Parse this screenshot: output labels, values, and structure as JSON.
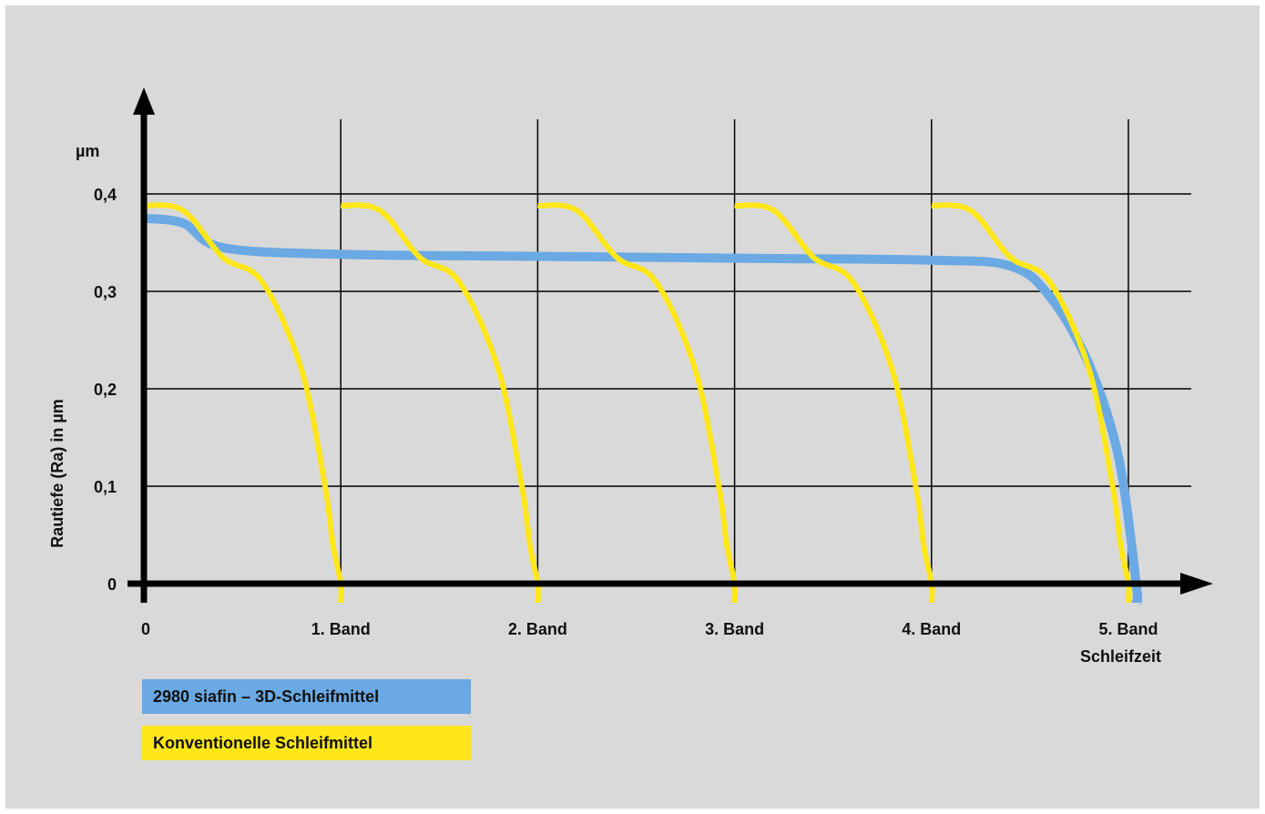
{
  "chart_data": {
    "type": "line",
    "ylabel": "Rautiefe (Ra) in µm",
    "yunit": "µm",
    "xlabel": "Schleifzeit",
    "ylim": [
      0,
      0.4
    ],
    "yticks": [
      "0",
      "0,1",
      "0,2",
      "0,3",
      "0,4"
    ],
    "ytick_values": [
      0,
      0.1,
      0.2,
      0.3,
      0.4
    ],
    "xlim": [
      0,
      5
    ],
    "xticks": [
      "0",
      "1. Band",
      "2. Band",
      "3. Band",
      "4. Band",
      "5. Band"
    ],
    "xtick_values": [
      0,
      1,
      2,
      3,
      4,
      5
    ],
    "grid": true,
    "series": [
      {
        "name": "2980 siafin – 3D-Schleifmittel",
        "color": "#6aa9e3",
        "x": [
          0,
          0.2,
          0.4,
          1,
          2,
          3,
          4,
          4.4,
          4.6,
          4.8,
          4.95,
          5.04
        ],
        "y": [
          0.375,
          0.37,
          0.345,
          0.338,
          0.336,
          0.334,
          0.332,
          0.326,
          0.295,
          0.225,
          0.13,
          0
        ]
      },
      {
        "name": "Konventionelle Schleifmittel",
        "color": "#ffe619",
        "segments": [
          {
            "x": [
              0,
              0.2,
              0.4,
              0.6,
              0.8,
              0.92,
              0.96,
              1
            ],
            "y": [
              0.388,
              0.383,
              0.335,
              0.31,
              0.22,
              0.1,
              0.04,
              0
            ]
          },
          {
            "x": [
              1,
              1.2,
              1.4,
              1.6,
              1.8,
              1.92,
              1.96,
              2
            ],
            "y": [
              0.388,
              0.383,
              0.335,
              0.31,
              0.22,
              0.1,
              0.04,
              0
            ]
          },
          {
            "x": [
              2,
              2.2,
              2.4,
              2.6,
              2.8,
              2.92,
              2.96,
              3
            ],
            "y": [
              0.388,
              0.383,
              0.335,
              0.31,
              0.22,
              0.1,
              0.04,
              0
            ]
          },
          {
            "x": [
              3,
              3.2,
              3.4,
              3.6,
              3.8,
              3.92,
              3.96,
              4
            ],
            "y": [
              0.388,
              0.383,
              0.335,
              0.31,
              0.22,
              0.1,
              0.04,
              0
            ]
          },
          {
            "x": [
              4,
              4.2,
              4.4,
              4.6,
              4.8,
              4.92,
              4.96,
              5
            ],
            "y": [
              0.388,
              0.383,
              0.335,
              0.31,
              0.22,
              0.1,
              0.04,
              0
            ]
          }
        ]
      }
    ],
    "legend": [
      {
        "label": "2980 siafin – 3D-Schleifmittel",
        "color": "#6aa9e3"
      },
      {
        "label": "Konventionelle Schleifmittel",
        "color": "#ffe619"
      }
    ]
  }
}
